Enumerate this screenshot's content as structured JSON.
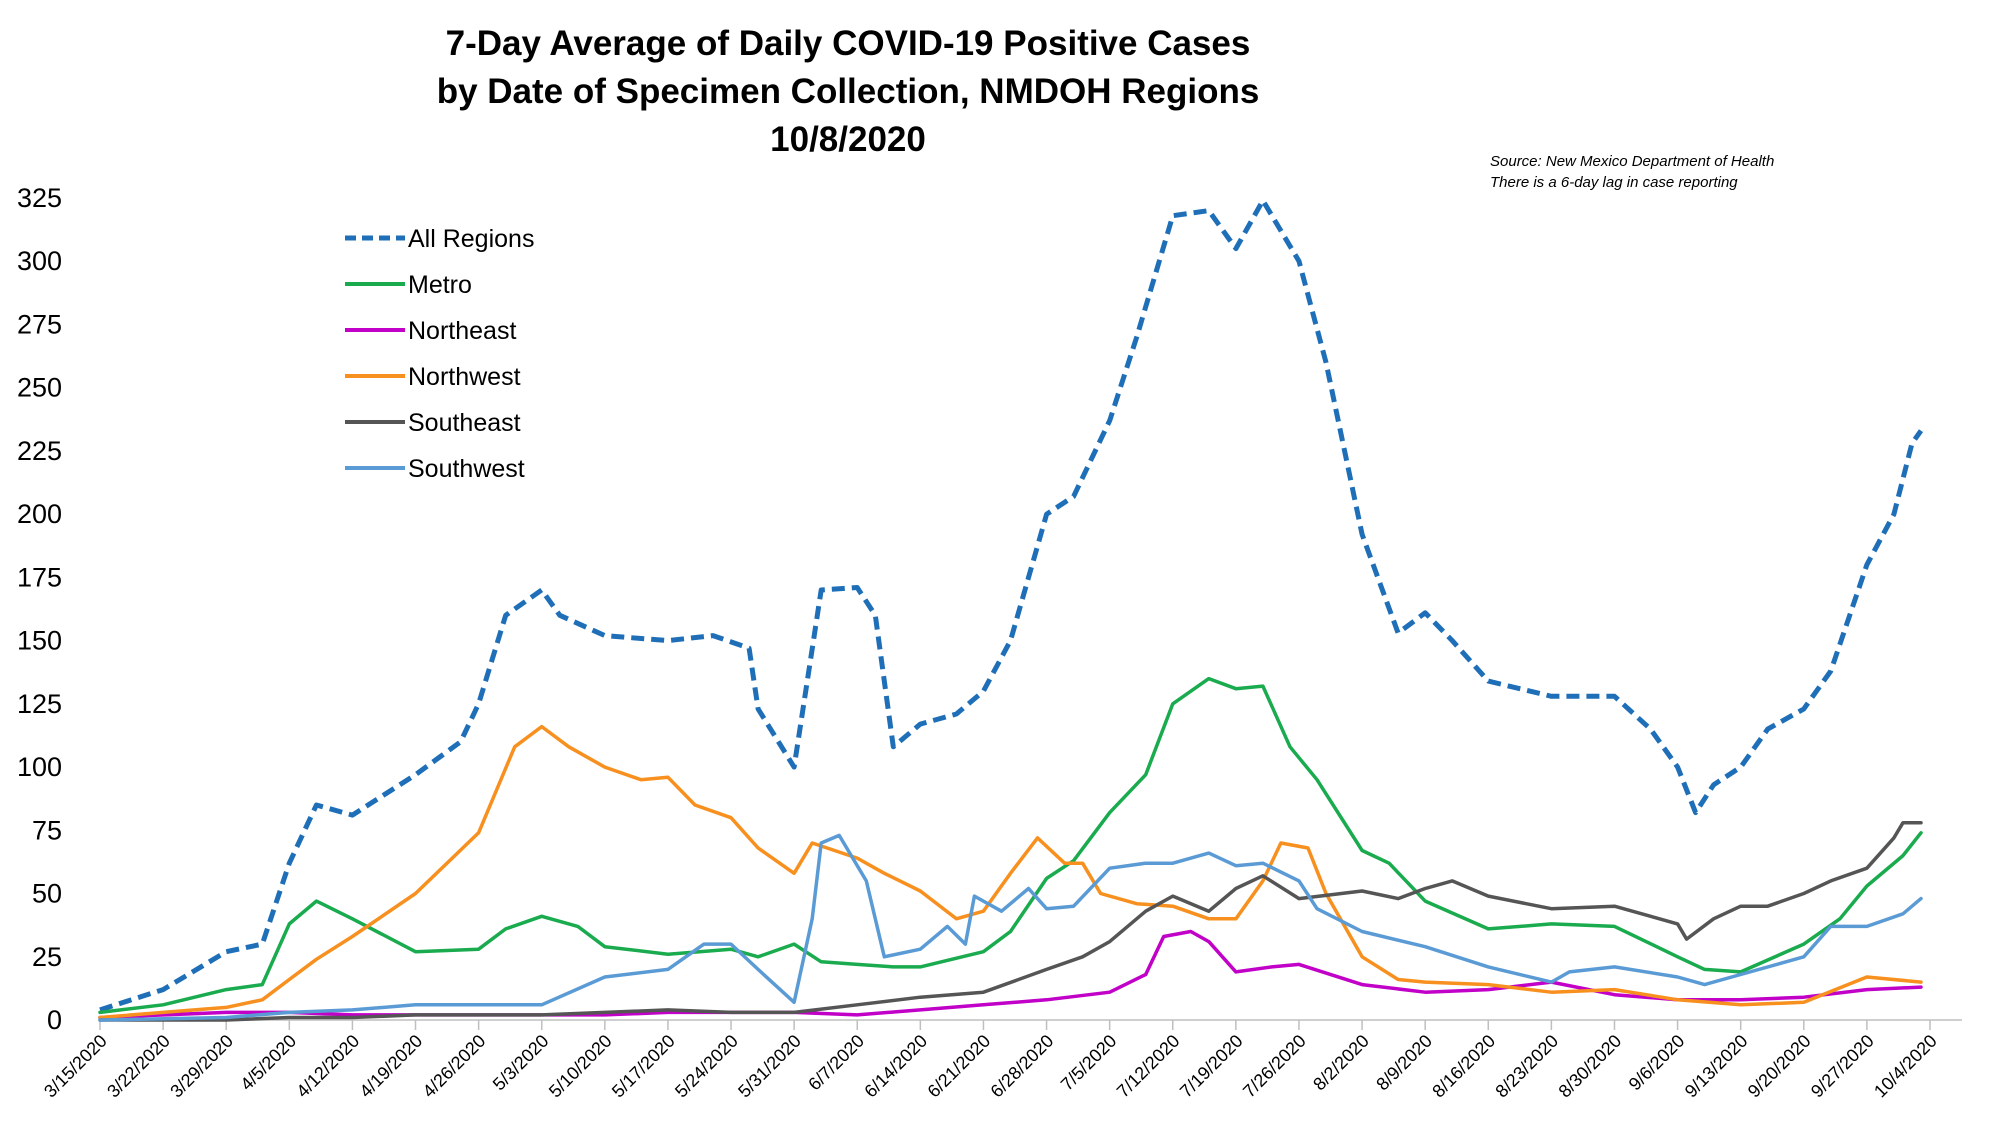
{
  "chart_data": {
    "type": "line",
    "title_lines": [
      "7-Day Average of Daily COVID-19 Positive Cases",
      "by Date of Specimen Collection, NMDOH Regions",
      "10/8/2020"
    ],
    "source_lines": [
      "Source: New Mexico Department of Health",
      "There is a 6-day lag in case reporting"
    ],
    "xlabel": "",
    "ylabel": "",
    "ylim": [
      0,
      325
    ],
    "yticks": [
      0,
      25,
      50,
      75,
      100,
      125,
      150,
      175,
      200,
      225,
      250,
      275,
      300,
      325
    ],
    "x_start": "3/15/2020",
    "x_end": "10/3/2020",
    "x_tick_labels": [
      "3/15/2020",
      "3/22/2020",
      "3/29/2020",
      "4/5/2020",
      "4/12/2020",
      "4/19/2020",
      "4/26/2020",
      "5/3/2020",
      "5/10/2020",
      "5/17/2020",
      "5/24/2020",
      "5/31/2020",
      "6/7/2020",
      "6/14/2020",
      "6/21/2020",
      "6/28/2020",
      "7/5/2020",
      "7/12/2020",
      "7/19/2020",
      "7/26/2020",
      "8/2/2020",
      "8/9/2020",
      "8/16/2020",
      "8/23/2020",
      "8/30/2020",
      "9/6/2020",
      "9/13/2020",
      "9/20/2020",
      "9/27/2020",
      "10/4/2020"
    ],
    "grid": false,
    "legend_position": "top-left",
    "series": [
      {
        "name": "All Regions",
        "color": "#1f6fb8",
        "style": "dashed",
        "points": [
          [
            "3/15/2020",
            4
          ],
          [
            "3/22/2020",
            12
          ],
          [
            "3/29/2020",
            27
          ],
          [
            "4/2/2020",
            30
          ],
          [
            "4/5/2020",
            62
          ],
          [
            "4/8/2020",
            85
          ],
          [
            "4/12/2020",
            81
          ],
          [
            "4/19/2020",
            97
          ],
          [
            "4/24/2020",
            110
          ],
          [
            "4/26/2020",
            125
          ],
          [
            "4/29/2020",
            160
          ],
          [
            "5/3/2020",
            170
          ],
          [
            "5/5/2020",
            160
          ],
          [
            "5/10/2020",
            152
          ],
          [
            "5/17/2020",
            150
          ],
          [
            "5/22/2020",
            152
          ],
          [
            "5/26/2020",
            147
          ],
          [
            "5/27/2020",
            123
          ],
          [
            "5/31/2020",
            100
          ],
          [
            "6/3/2020",
            170
          ],
          [
            "6/7/2020",
            171
          ],
          [
            "6/9/2020",
            160
          ],
          [
            "6/11/2020",
            108
          ],
          [
            "6/14/2020",
            117
          ],
          [
            "6/18/2020",
            121
          ],
          [
            "6/21/2020",
            130
          ],
          [
            "6/24/2020",
            150
          ],
          [
            "6/28/2020",
            200
          ],
          [
            "7/1/2020",
            207
          ],
          [
            "7/5/2020",
            237
          ],
          [
            "7/8/2020",
            270
          ],
          [
            "7/12/2020",
            318
          ],
          [
            "7/16/2020",
            320
          ],
          [
            "7/19/2020",
            305
          ],
          [
            "7/22/2020",
            324
          ],
          [
            "7/26/2020",
            300
          ],
          [
            "7/29/2020",
            260
          ],
          [
            "8/2/2020",
            192
          ],
          [
            "8/6/2020",
            153
          ],
          [
            "8/9/2020",
            161
          ],
          [
            "8/12/2020",
            150
          ],
          [
            "8/16/2020",
            134
          ],
          [
            "8/23/2020",
            128
          ],
          [
            "8/30/2020",
            128
          ],
          [
            "9/3/2020",
            115
          ],
          [
            "9/6/2020",
            100
          ],
          [
            "9/8/2020",
            82
          ],
          [
            "9/10/2020",
            93
          ],
          [
            "9/13/2020",
            100
          ],
          [
            "9/16/2020",
            115
          ],
          [
            "9/20/2020",
            123
          ],
          [
            "9/23/2020",
            138
          ],
          [
            "9/27/2020",
            180
          ],
          [
            "9/30/2020",
            200
          ],
          [
            "10/2/2020",
            228
          ],
          [
            "10/3/2020",
            233
          ]
        ]
      },
      {
        "name": "Metro",
        "color": "#1aab4f",
        "style": "solid",
        "points": [
          [
            "3/15/2020",
            3
          ],
          [
            "3/22/2020",
            6
          ],
          [
            "3/29/2020",
            12
          ],
          [
            "4/2/2020",
            14
          ],
          [
            "4/5/2020",
            38
          ],
          [
            "4/8/2020",
            47
          ],
          [
            "4/12/2020",
            40
          ],
          [
            "4/19/2020",
            27
          ],
          [
            "4/26/2020",
            28
          ],
          [
            "4/29/2020",
            36
          ],
          [
            "5/3/2020",
            41
          ],
          [
            "5/7/2020",
            37
          ],
          [
            "5/10/2020",
            29
          ],
          [
            "5/17/2020",
            26
          ],
          [
            "5/24/2020",
            28
          ],
          [
            "5/27/2020",
            25
          ],
          [
            "5/31/2020",
            30
          ],
          [
            "6/3/2020",
            23
          ],
          [
            "6/7/2020",
            22
          ],
          [
            "6/11/2020",
            21
          ],
          [
            "6/14/2020",
            21
          ],
          [
            "6/21/2020",
            27
          ],
          [
            "6/24/2020",
            35
          ],
          [
            "6/28/2020",
            56
          ],
          [
            "7/1/2020",
            63
          ],
          [
            "7/5/2020",
            82
          ],
          [
            "7/9/2020",
            97
          ],
          [
            "7/12/2020",
            125
          ],
          [
            "7/16/2020",
            135
          ],
          [
            "7/19/2020",
            131
          ],
          [
            "7/22/2020",
            132
          ],
          [
            "7/25/2020",
            108
          ],
          [
            "7/28/2020",
            95
          ],
          [
            "8/2/2020",
            67
          ],
          [
            "8/5/2020",
            62
          ],
          [
            "8/9/2020",
            47
          ],
          [
            "8/16/2020",
            36
          ],
          [
            "8/23/2020",
            38
          ],
          [
            "8/30/2020",
            37
          ],
          [
            "9/6/2020",
            25
          ],
          [
            "9/9/2020",
            20
          ],
          [
            "9/13/2020",
            19
          ],
          [
            "9/20/2020",
            30
          ],
          [
            "9/24/2020",
            40
          ],
          [
            "9/27/2020",
            53
          ],
          [
            "10/1/2020",
            65
          ],
          [
            "10/3/2020",
            74
          ]
        ]
      },
      {
        "name": "Northeast",
        "color": "#c100c8",
        "style": "solid",
        "points": [
          [
            "3/15/2020",
            1
          ],
          [
            "3/29/2020",
            3
          ],
          [
            "4/5/2020",
            3
          ],
          [
            "4/12/2020",
            2
          ],
          [
            "4/19/2020",
            2
          ],
          [
            "4/26/2020",
            2
          ],
          [
            "5/3/2020",
            2
          ],
          [
            "5/10/2020",
            2
          ],
          [
            "5/17/2020",
            3
          ],
          [
            "5/24/2020",
            3
          ],
          [
            "5/31/2020",
            3
          ],
          [
            "6/7/2020",
            2
          ],
          [
            "6/14/2020",
            4
          ],
          [
            "6/21/2020",
            6
          ],
          [
            "6/28/2020",
            8
          ],
          [
            "7/5/2020",
            11
          ],
          [
            "7/9/2020",
            18
          ],
          [
            "7/11/2020",
            33
          ],
          [
            "7/14/2020",
            35
          ],
          [
            "7/16/2020",
            31
          ],
          [
            "7/19/2020",
            19
          ],
          [
            "7/23/2020",
            21
          ],
          [
            "7/26/2020",
            22
          ],
          [
            "8/2/2020",
            14
          ],
          [
            "8/9/2020",
            11
          ],
          [
            "8/16/2020",
            12
          ],
          [
            "8/23/2020",
            15
          ],
          [
            "8/30/2020",
            10
          ],
          [
            "9/6/2020",
            8
          ],
          [
            "9/13/2020",
            8
          ],
          [
            "9/20/2020",
            9
          ],
          [
            "9/27/2020",
            12
          ],
          [
            "10/3/2020",
            13
          ]
        ]
      },
      {
        "name": "Northwest",
        "color": "#f7901e",
        "style": "solid",
        "points": [
          [
            "3/15/2020",
            1
          ],
          [
            "3/22/2020",
            3
          ],
          [
            "3/29/2020",
            5
          ],
          [
            "4/2/2020",
            8
          ],
          [
            "4/5/2020",
            16
          ],
          [
            "4/8/2020",
            24
          ],
          [
            "4/12/2020",
            33
          ],
          [
            "4/19/2020",
            50
          ],
          [
            "4/26/2020",
            74
          ],
          [
            "4/30/2020",
            108
          ],
          [
            "5/3/2020",
            116
          ],
          [
            "5/6/2020",
            108
          ],
          [
            "5/10/2020",
            100
          ],
          [
            "5/14/2020",
            95
          ],
          [
            "5/17/2020",
            96
          ],
          [
            "5/20/2020",
            85
          ],
          [
            "5/24/2020",
            80
          ],
          [
            "5/27/2020",
            68
          ],
          [
            "5/31/2020",
            58
          ],
          [
            "6/2/2020",
            70
          ],
          [
            "6/7/2020",
            64
          ],
          [
            "6/10/2020",
            58
          ],
          [
            "6/14/2020",
            51
          ],
          [
            "6/18/2020",
            40
          ],
          [
            "6/21/2020",
            43
          ],
          [
            "6/24/2020",
            58
          ],
          [
            "6/27/2020",
            72
          ],
          [
            "6/30/2020",
            62
          ],
          [
            "7/2/2020",
            62
          ],
          [
            "7/4/2020",
            50
          ],
          [
            "7/8/2020",
            46
          ],
          [
            "7/12/2020",
            45
          ],
          [
            "7/16/2020",
            40
          ],
          [
            "7/19/2020",
            40
          ],
          [
            "7/22/2020",
            55
          ],
          [
            "7/24/2020",
            70
          ],
          [
            "7/27/2020",
            68
          ],
          [
            "7/29/2020",
            50
          ],
          [
            "8/2/2020",
            25
          ],
          [
            "8/6/2020",
            16
          ],
          [
            "8/9/2020",
            15
          ],
          [
            "8/16/2020",
            14
          ],
          [
            "8/23/2020",
            11
          ],
          [
            "8/30/2020",
            12
          ],
          [
            "9/6/2020",
            8
          ],
          [
            "9/13/2020",
            6
          ],
          [
            "9/20/2020",
            7
          ],
          [
            "9/27/2020",
            17
          ],
          [
            "10/3/2020",
            15
          ]
        ]
      },
      {
        "name": "Southeast",
        "color": "#555555",
        "style": "solid",
        "points": [
          [
            "3/15/2020",
            0
          ],
          [
            "3/29/2020",
            0
          ],
          [
            "4/5/2020",
            1
          ],
          [
            "4/12/2020",
            1
          ],
          [
            "4/19/2020",
            2
          ],
          [
            "4/26/2020",
            2
          ],
          [
            "5/3/2020",
            2
          ],
          [
            "5/10/2020",
            3
          ],
          [
            "5/17/2020",
            4
          ],
          [
            "5/24/2020",
            3
          ],
          [
            "5/31/2020",
            3
          ],
          [
            "6/7/2020",
            6
          ],
          [
            "6/14/2020",
            9
          ],
          [
            "6/21/2020",
            11
          ],
          [
            "6/28/2020",
            20
          ],
          [
            "7/2/2020",
            25
          ],
          [
            "7/5/2020",
            31
          ],
          [
            "7/9/2020",
            43
          ],
          [
            "7/12/2020",
            49
          ],
          [
            "7/16/2020",
            43
          ],
          [
            "7/19/2020",
            52
          ],
          [
            "7/22/2020",
            57
          ],
          [
            "7/26/2020",
            48
          ],
          [
            "8/2/2020",
            51
          ],
          [
            "8/6/2020",
            48
          ],
          [
            "8/9/2020",
            52
          ],
          [
            "8/12/2020",
            55
          ],
          [
            "8/16/2020",
            49
          ],
          [
            "8/23/2020",
            44
          ],
          [
            "8/30/2020",
            45
          ],
          [
            "9/6/2020",
            38
          ],
          [
            "9/7/2020",
            32
          ],
          [
            "9/10/2020",
            40
          ],
          [
            "9/13/2020",
            45
          ],
          [
            "9/16/2020",
            45
          ],
          [
            "9/20/2020",
            50
          ],
          [
            "9/23/2020",
            55
          ],
          [
            "9/27/2020",
            60
          ],
          [
            "9/30/2020",
            72
          ],
          [
            "10/1/2020",
            78
          ],
          [
            "10/3/2020",
            78
          ]
        ]
      },
      {
        "name": "Southwest",
        "color": "#5b9bd5",
        "style": "solid",
        "points": [
          [
            "3/15/2020",
            0
          ],
          [
            "3/29/2020",
            1
          ],
          [
            "4/5/2020",
            3
          ],
          [
            "4/12/2020",
            4
          ],
          [
            "4/19/2020",
            6
          ],
          [
            "4/26/2020",
            6
          ],
          [
            "5/3/2020",
            6
          ],
          [
            "5/10/2020",
            17
          ],
          [
            "5/17/2020",
            20
          ],
          [
            "5/21/2020",
            30
          ],
          [
            "5/24/2020",
            30
          ],
          [
            "5/27/2020",
            20
          ],
          [
            "5/31/2020",
            7
          ],
          [
            "6/2/2020",
            40
          ],
          [
            "6/3/2020",
            70
          ],
          [
            "6/5/2020",
            73
          ],
          [
            "6/8/2020",
            55
          ],
          [
            "6/10/2020",
            25
          ],
          [
            "6/14/2020",
            28
          ],
          [
            "6/17/2020",
            37
          ],
          [
            "6/19/2020",
            30
          ],
          [
            "6/20/2020",
            49
          ],
          [
            "6/23/2020",
            43
          ],
          [
            "6/26/2020",
            52
          ],
          [
            "6/28/2020",
            44
          ],
          [
            "7/1/2020",
            45
          ],
          [
            "7/5/2020",
            60
          ],
          [
            "7/9/2020",
            62
          ],
          [
            "7/12/2020",
            62
          ],
          [
            "7/16/2020",
            66
          ],
          [
            "7/19/2020",
            61
          ],
          [
            "7/22/2020",
            62
          ],
          [
            "7/26/2020",
            55
          ],
          [
            "7/28/2020",
            44
          ],
          [
            "8/2/2020",
            35
          ],
          [
            "8/9/2020",
            29
          ],
          [
            "8/16/2020",
            21
          ],
          [
            "8/23/2020",
            15
          ],
          [
            "8/25/2020",
            19
          ],
          [
            "8/30/2020",
            21
          ],
          [
            "9/6/2020",
            17
          ],
          [
            "9/9/2020",
            14
          ],
          [
            "9/13/2020",
            18
          ],
          [
            "9/20/2020",
            25
          ],
          [
            "9/23/2020",
            37
          ],
          [
            "9/27/2020",
            37
          ],
          [
            "10/1/2020",
            42
          ],
          [
            "10/3/2020",
            48
          ]
        ]
      }
    ]
  }
}
